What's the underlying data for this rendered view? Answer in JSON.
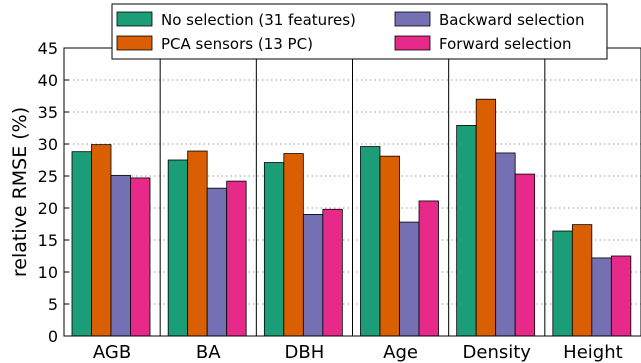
{
  "chart_data": {
    "type": "bar",
    "title": "",
    "xlabel": "",
    "ylabel": "relative RMSE (%)",
    "ylim": [
      0,
      45
    ],
    "yticks": [
      0,
      5,
      10,
      15,
      20,
      25,
      30,
      35,
      40,
      45
    ],
    "grid": "dotted horizontal",
    "legend_position": "top",
    "categories": [
      "AGB",
      "BA",
      "DBH",
      "Age",
      "Density",
      "Height"
    ],
    "series": [
      {
        "name": "No selection (31 features)",
        "color": "#1b9e77",
        "values": [
          28.8,
          27.5,
          27.1,
          29.6,
          32.9,
          16.4
        ]
      },
      {
        "name": "PCA sensors (13 PC)",
        "color": "#d95f02",
        "values": [
          29.9,
          28.9,
          28.5,
          28.1,
          37.0,
          17.4
        ]
      },
      {
        "name": "Backward selection",
        "color": "#7570b3",
        "values": [
          25.1,
          23.1,
          19.0,
          17.8,
          28.6,
          12.2
        ]
      },
      {
        "name": "Forward selection",
        "color": "#e7298a",
        "values": [
          24.7,
          24.2,
          19.8,
          21.1,
          25.3,
          12.5
        ]
      }
    ]
  }
}
